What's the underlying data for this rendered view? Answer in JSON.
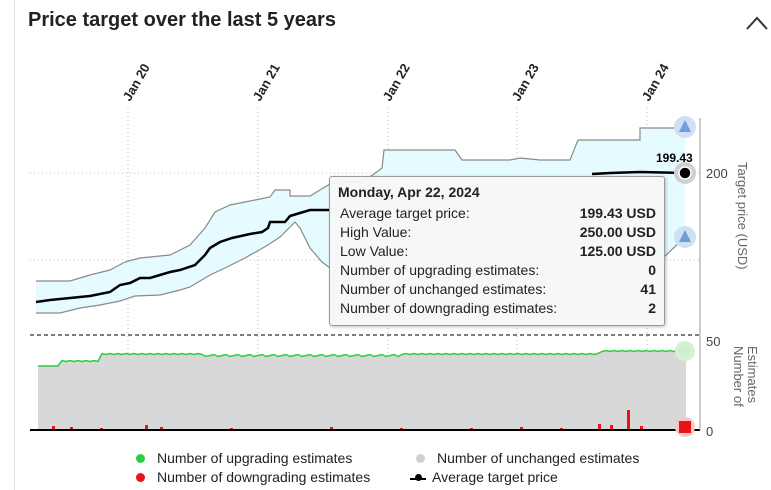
{
  "header": {
    "title": "Price target over the last 5 years"
  },
  "chart_data": {
    "type": "line",
    "x_ticks": [
      "Jan 20",
      "Jan 21",
      "Jan 22",
      "Jan 23",
      "Jan 24"
    ],
    "y_right_label": "Target price (USD)",
    "y_right_ticks": [
      200
    ],
    "y_lower_label": "Number of Estimates",
    "y_lower_ticks": [
      50,
      0
    ],
    "last_value_label": "199.43",
    "series": [
      {
        "name": "Average target price",
        "color": "#000000"
      },
      {
        "name": "Number of upgrading estimates",
        "color": "#2ecc40"
      },
      {
        "name": "Number of unchanged estimates",
        "color": "#d0d0d0"
      },
      {
        "name": "Number of downgrading estimates",
        "color": "#e8141a"
      }
    ],
    "range_band_color": "#e6fbff"
  },
  "tooltip": {
    "title": "Monday, Apr 22, 2024",
    "rows": [
      {
        "label": "Average target price:",
        "value": "199.43 USD"
      },
      {
        "label": "High Value:",
        "value": "250.00 USD"
      },
      {
        "label": "Low Value:",
        "value": "125.00 USD"
      },
      {
        "label": "Number of upgrading estimates:",
        "value": "0"
      },
      {
        "label": "Number of unchanged estimates:",
        "value": "41"
      },
      {
        "label": "Number of downgrading estimates:",
        "value": "2"
      }
    ]
  },
  "legend": {
    "upgrading": "Number of upgrading estimates",
    "unchanged": "Number of unchanged estimates",
    "downgrading": "Number of downgrading estimates",
    "average": "Average target price"
  }
}
